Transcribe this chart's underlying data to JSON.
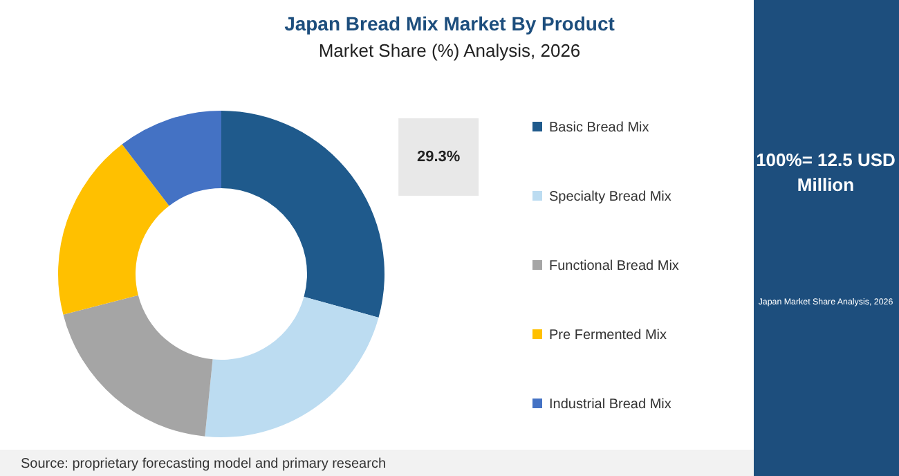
{
  "chart_data": {
    "type": "donut",
    "title": "Japan Bread Mix Market By Product",
    "subtitle": "Market Share (%) Analysis, 2026",
    "categories": [
      "Basic Bread Mix",
      "Specialty Bread Mix",
      "Functional Bread Mix",
      "Pre Fermented Mix",
      "Industrial Bread Mix"
    ],
    "values": [
      29.3,
      22.3,
      19.4,
      18.6,
      10.4
    ],
    "colors": [
      "#1f5a8c",
      "#bcdcf1",
      "#a5a5a5",
      "#ffc000",
      "#4472c4"
    ],
    "value_labels": [
      "29.3%",
      null,
      null,
      null,
      null
    ],
    "legend": "right",
    "annotations": [
      "Source: proprietary forecasting model and primary research",
      "100%= 12.5 USD Million",
      "Japan Market Share Analysis, 2026"
    ]
  }
}
